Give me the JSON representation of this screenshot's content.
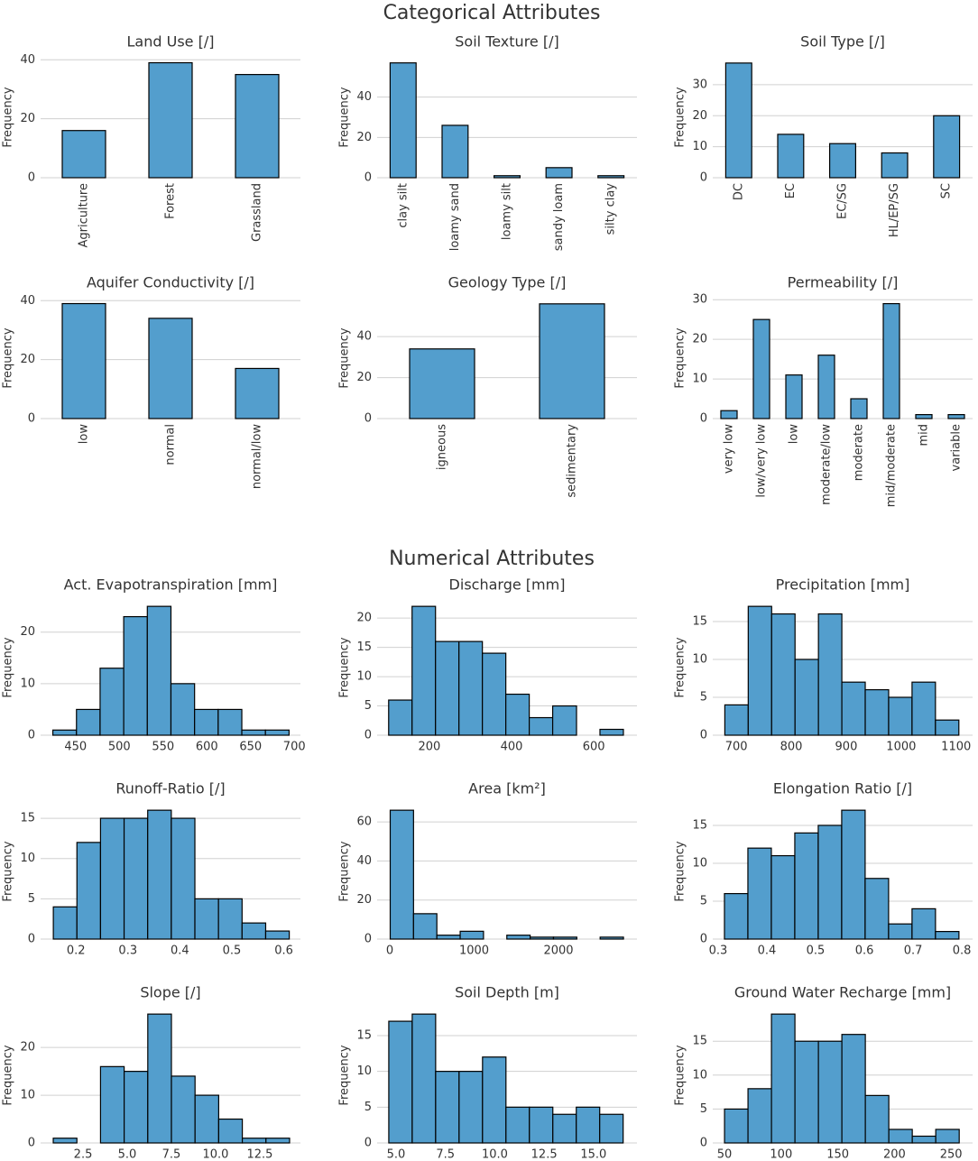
{
  "titles": [
    "Categorical Attributes",
    "Numerical Attributes"
  ],
  "chart_data": [
    {
      "type": "bar",
      "title": "Land Use [/]",
      "ylabel": "Frequency",
      "categories": [
        "Agriculture",
        "Forest",
        "Grassland"
      ],
      "values": [
        16,
        39,
        35
      ],
      "color": "#539ecd",
      "ylim": [
        0,
        41
      ],
      "yticks": [
        0,
        20,
        40
      ],
      "grid": true
    },
    {
      "type": "bar",
      "title": "Soil Texture [/]",
      "ylabel": "Frequency",
      "categories": [
        "clay silt",
        "loamy sand",
        "loamy silt",
        "sandy loam",
        "silty clay"
      ],
      "values": [
        57,
        26,
        1,
        5,
        1
      ],
      "color": "#539ecd",
      "ylim": [
        0,
        60
      ],
      "yticks": [
        0,
        20,
        40
      ],
      "grid": true
    },
    {
      "type": "bar",
      "title": "Soil Type [/]",
      "ylabel": "Frequency",
      "categories": [
        "DC",
        "EC",
        "EC/SG",
        "HL/EP/SG",
        "SC"
      ],
      "values": [
        37,
        14,
        11,
        8,
        20
      ],
      "color": "#539ecd",
      "ylim": [
        0,
        39
      ],
      "yticks": [
        0,
        10,
        20,
        30
      ],
      "grid": true
    },
    {
      "type": "bar",
      "title": "Aquifer Conductivity [/]",
      "ylabel": "Frequency",
      "categories": [
        "low",
        "normal",
        "normal/low"
      ],
      "values": [
        39,
        34,
        17
      ],
      "color": "#539ecd",
      "ylim": [
        0,
        41
      ],
      "yticks": [
        0,
        20,
        40
      ],
      "grid": true
    },
    {
      "type": "bar",
      "title": "Geology Type [/]",
      "ylabel": "Frequency",
      "categories": [
        "igneous",
        "sedimentary"
      ],
      "values": [
        34,
        56
      ],
      "color": "#539ecd",
      "ylim": [
        0,
        59
      ],
      "yticks": [
        0,
        20,
        40
      ],
      "grid": true
    },
    {
      "type": "bar",
      "title": "Permeability [/]",
      "ylabel": "Frequency",
      "categories": [
        "very low",
        "low/very low",
        "low",
        "moderate/low",
        "moderate",
        "mid/moderate",
        "mid",
        "variable"
      ],
      "values": [
        2,
        25,
        11,
        16,
        5,
        29,
        1,
        1
      ],
      "color": "#539ecd",
      "ylim": [
        0,
        30.5
      ],
      "yticks": [
        0,
        10,
        20,
        30
      ],
      "grid": true
    },
    {
      "type": "histogram",
      "title": "Act. Evapotranspiration [mm]",
      "ylabel": "Frequency",
      "bins": [
        424,
        451,
        478,
        505,
        532,
        559,
        586,
        613,
        640,
        667,
        694
      ],
      "values": [
        1,
        5,
        13,
        23,
        25,
        10,
        5,
        5,
        1,
        1
      ],
      "color": "#539ecd",
      "xlim": [
        410,
        707
      ],
      "xticks": [
        450,
        500,
        550,
        600,
        650,
        700
      ],
      "ylim": [
        0,
        26.25
      ],
      "yticks": [
        0,
        10,
        20
      ],
      "grid": true
    },
    {
      "type": "histogram",
      "title": "Discharge [mm]",
      "ylabel": "Frequency",
      "bins": [
        101,
        158,
        215,
        272,
        329,
        386,
        443,
        500,
        558,
        615,
        672
      ],
      "values": [
        6,
        22,
        16,
        16,
        14,
        7,
        3,
        5,
        0,
        1
      ],
      "color": "#539ecd",
      "xlim": [
        73,
        705
      ],
      "xticks": [
        200,
        400,
        600
      ],
      "ylim": [
        0,
        23.1
      ],
      "yticks": [
        0,
        5,
        10,
        15,
        20
      ],
      "grid": true
    },
    {
      "type": "histogram",
      "title": "Precipitation [mm]",
      "ylabel": "Frequency",
      "bins": [
        679,
        721.6,
        764.2,
        806.8,
        849.4,
        892,
        934.6,
        977.2,
        1019.8,
        1062.4,
        1105
      ],
      "values": [
        4,
        17,
        16,
        10,
        16,
        7,
        6,
        5,
        7,
        2
      ],
      "color": "#539ecd",
      "xlim": [
        657,
        1130
      ],
      "xticks": [
        700,
        800,
        900,
        1000,
        1100
      ],
      "ylim": [
        0,
        17.85
      ],
      "yticks": [
        0,
        5,
        10,
        15
      ],
      "grid": true
    },
    {
      "type": "histogram",
      "title": "Runoff-Ratio [/]",
      "ylabel": "Frequency",
      "bins": [
        0.1565,
        0.2019,
        0.2473,
        0.2927,
        0.3381,
        0.3835,
        0.4289,
        0.4743,
        0.5197,
        0.5651,
        0.6105
      ],
      "values": [
        4,
        12,
        15,
        15,
        16,
        15,
        5,
        5,
        2,
        1
      ],
      "color": "#539ecd",
      "xlim": [
        0.132,
        0.632
      ],
      "xticks": [
        0.2,
        0.3,
        0.4,
        0.5,
        0.6
      ],
      "ylim": [
        0,
        16.8
      ],
      "yticks": [
        0,
        5,
        10,
        15
      ],
      "grid": true
    },
    {
      "type": "histogram",
      "title": "Area [km²]",
      "ylabel": "Frequency",
      "bins": [
        5,
        281.5,
        558,
        834.5,
        1111,
        1387.5,
        1664,
        1940.5,
        2217,
        2493.5,
        2770
      ],
      "values": [
        66,
        13,
        2,
        4,
        0,
        2,
        1,
        1,
        0,
        1
      ],
      "color": "#539ecd",
      "xlim": [
        -150,
        2930
      ],
      "xticks": [
        0,
        1000,
        2000
      ],
      "ylim": [
        0,
        69.3
      ],
      "yticks": [
        0,
        20,
        40,
        60
      ],
      "grid": true
    },
    {
      "type": "histogram",
      "title": "Elongation Ratio [/]",
      "ylabel": "Frequency",
      "bins": [
        0.313,
        0.3611,
        0.4092,
        0.4573,
        0.5054,
        0.5535,
        0.6016,
        0.6497,
        0.6978,
        0.7459,
        0.794
      ],
      "values": [
        6,
        12,
        11,
        14,
        15,
        17,
        8,
        2,
        4,
        1
      ],
      "color": "#539ecd",
      "xlim": [
        0.289,
        0.822
      ],
      "xticks": [
        0.3,
        0.4,
        0.5,
        0.6,
        0.7,
        0.8
      ],
      "ylim": [
        0,
        17.85
      ],
      "yticks": [
        0,
        5,
        10,
        15
      ],
      "grid": true
    },
    {
      "type": "histogram",
      "title": "Slope [/]",
      "ylabel": "Frequency",
      "bins": [
        0.816,
        2.153,
        3.49,
        4.827,
        6.164,
        7.501,
        8.838,
        10.175,
        11.512,
        12.849,
        14.186
      ],
      "values": [
        1,
        0,
        16,
        15,
        27,
        14,
        10,
        5,
        1,
        1
      ],
      "color": "#539ecd",
      "xlim": [
        0.1,
        14.8
      ],
      "xticks": [
        2.5,
        {
          "value": 5,
          "label": "5.0"
        },
        7.5,
        {
          "value": 10,
          "label": "10.0"
        },
        12.5
      ],
      "ylim": [
        0,
        28.35
      ],
      "yticks": [
        0,
        10,
        20
      ],
      "grid": true
    },
    {
      "type": "histogram",
      "title": "Soil Depth [m]",
      "ylabel": "Frequency",
      "bins": [
        4.63,
        5.817,
        7.004,
        8.191,
        9.378,
        10.565,
        11.752,
        12.939,
        14.126,
        15.313,
        16.5
      ],
      "values": [
        17,
        18,
        10,
        10,
        12,
        5,
        5,
        4,
        5,
        4
      ],
      "color": "#539ecd",
      "xlim": [
        4.04,
        17.2
      ],
      "xticks": [
        {
          "value": 5,
          "label": "5.0"
        },
        7.5,
        {
          "value": 10,
          "label": "10.0"
        },
        12.5,
        {
          "value": 15,
          "label": "15.0"
        }
      ],
      "ylim": [
        0,
        18.9
      ],
      "yticks": [
        0,
        5,
        10,
        15
      ],
      "grid": true
    },
    {
      "type": "histogram",
      "title": "Ground Water Recharge [mm]",
      "ylabel": "Frequency",
      "bins": [
        50,
        70.72,
        91.44,
        112.16,
        132.88,
        153.6,
        174.32,
        195.04,
        215.76,
        236.48,
        257.2
      ],
      "values": [
        5,
        8,
        19,
        15,
        15,
        16,
        7,
        2,
        1,
        2
      ],
      "color": "#539ecd",
      "xlim": [
        39.6,
        269
      ],
      "xticks": [
        50,
        100,
        150,
        200,
        250
      ],
      "ylim": [
        0,
        19.95
      ],
      "yticks": [
        0,
        5,
        10,
        15
      ],
      "grid": true
    }
  ]
}
